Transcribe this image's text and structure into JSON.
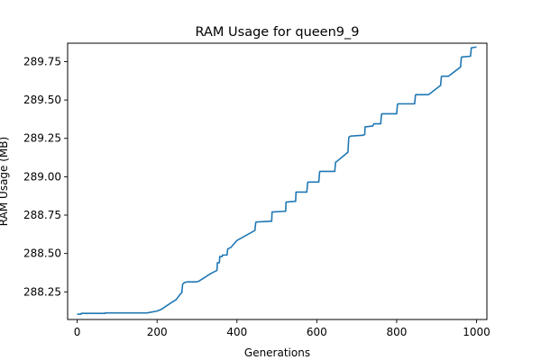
{
  "chart_data": {
    "type": "line",
    "title": "RAM Usage for queen9_9",
    "xlabel": "Generations",
    "ylabel": "RAM Usage (MB)",
    "xlim": [
      -24,
      1026
    ],
    "ylim": [
      288.07,
      289.87
    ],
    "xticks": [
      0,
      200,
      400,
      600,
      800,
      1000
    ],
    "xtick_labels": [
      "0",
      "200",
      "400",
      "600",
      "800",
      "1000"
    ],
    "yticks": [
      288.25,
      288.5,
      288.75,
      289.0,
      289.25,
      289.5,
      289.75
    ],
    "ytick_labels": [
      "288.25",
      "288.50",
      "288.75",
      "289.00",
      "289.25",
      "289.50",
      "289.75"
    ],
    "grid": false,
    "series": [
      {
        "color": "#1f77b4",
        "x": [
          0,
          10,
          10,
          70,
          70,
          175,
          200,
          210,
          230,
          248,
          258,
          262,
          264,
          268,
          275,
          298,
          305,
          320,
          335,
          350,
          351,
          356,
          357,
          363,
          364,
          375,
          377,
          385,
          400,
          445,
          447,
          448,
          485,
          487,
          488,
          520,
          522,
          523,
          545,
          547,
          548,
          575,
          577,
          578,
          605,
          607,
          608,
          645,
          647,
          648,
          678,
          680,
          681,
          685,
          715,
          720,
          721,
          740,
          742,
          743,
          760,
          762,
          763,
          800,
          802,
          803,
          845,
          847,
          848,
          880,
          910,
          912,
          913,
          930,
          960,
          962,
          963,
          985,
          987,
          1000
        ],
        "y": [
          288.105,
          288.105,
          288.11,
          288.11,
          288.113,
          288.113,
          288.125,
          288.135,
          288.17,
          288.2,
          288.235,
          288.245,
          288.3,
          288.31,
          288.315,
          288.315,
          288.32,
          288.345,
          288.37,
          288.39,
          288.44,
          288.44,
          288.48,
          288.48,
          288.49,
          288.49,
          288.53,
          288.54,
          288.585,
          288.65,
          288.7,
          288.705,
          288.71,
          288.71,
          288.77,
          288.775,
          288.775,
          288.835,
          288.84,
          288.84,
          288.9,
          288.9,
          288.96,
          288.965,
          288.965,
          289.03,
          289.035,
          289.035,
          289.095,
          289.095,
          289.16,
          289.25,
          289.26,
          289.265,
          289.27,
          289.275,
          289.325,
          289.33,
          289.34,
          289.345,
          289.345,
          289.405,
          289.41,
          289.41,
          289.47,
          289.475,
          289.475,
          289.53,
          289.535,
          289.535,
          289.595,
          289.65,
          289.655,
          289.655,
          289.715,
          289.775,
          289.78,
          289.785,
          289.84,
          289.845
        ]
      }
    ]
  }
}
